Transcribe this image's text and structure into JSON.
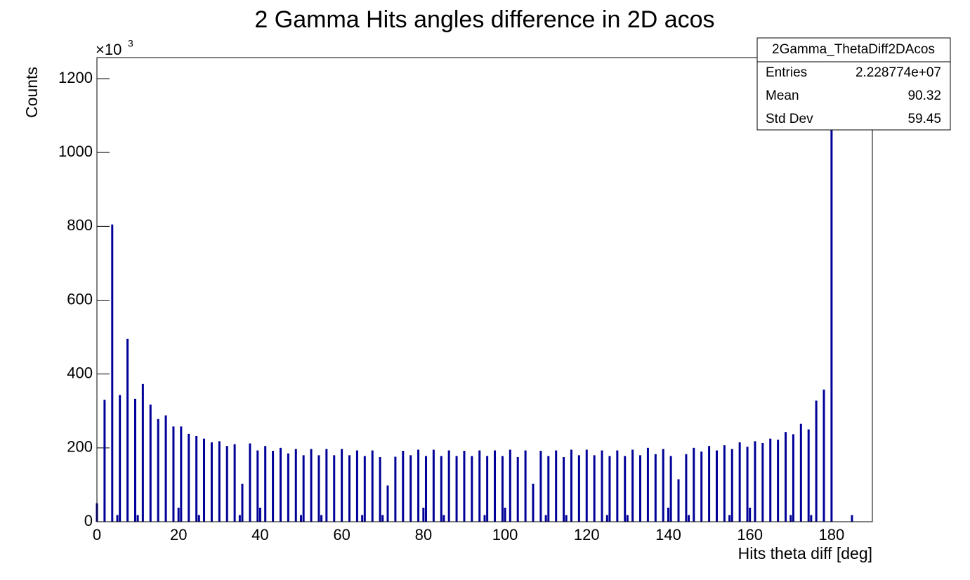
{
  "chart_data": {
    "type": "bar",
    "title": "2 Gamma Hits angles difference in 2D acos",
    "xlabel": "Hits theta diff [deg]",
    "ylabel": "Counts",
    "y_multiplier": "×10",
    "y_multiplier_exp": "3",
    "color": "#000099",
    "xlim": [
      0,
      190
    ],
    "ylim": [
      0,
      1257
    ],
    "xticks": [
      0,
      20,
      40,
      60,
      80,
      100,
      120,
      140,
      160,
      180
    ],
    "yticks": [
      0,
      200,
      400,
      600,
      800,
      1000,
      1200
    ],
    "x": [
      1.875,
      3.75,
      5.625,
      7.5,
      9.375,
      11.25,
      13.125,
      15,
      16.875,
      18.75,
      20.625,
      22.5,
      24.375,
      26.25,
      28.125,
      30,
      31.875,
      33.75,
      35.625,
      37.5,
      39.375,
      41.25,
      43.125,
      45,
      46.875,
      48.75,
      50.625,
      52.5,
      54.375,
      56.25,
      58.125,
      60,
      61.875,
      63.75,
      65.625,
      67.5,
      69.375,
      71.25,
      73.125,
      75,
      76.875,
      78.75,
      80.625,
      82.5,
      84.375,
      86.25,
      88.125,
      90,
      91.875,
      93.75,
      95.625,
      97.5,
      99.375,
      101.25,
      103.125,
      105,
      106.875,
      108.75,
      110.625,
      112.5,
      114.375,
      116.25,
      118.125,
      120,
      121.875,
      123.75,
      125.625,
      127.5,
      129.375,
      131.25,
      133.125,
      135,
      136.875,
      138.75,
      140.625,
      142.5,
      144.375,
      146.25,
      148.125,
      150,
      151.875,
      153.75,
      155.625,
      157.5,
      159.375,
      161.25,
      163.125,
      165,
      166.875,
      168.75,
      170.625,
      172.5,
      174.375,
      176.25,
      178.125,
      180,
      0,
      5,
      10,
      20,
      25,
      35,
      40,
      50,
      55,
      65,
      70,
      80,
      85,
      95,
      100,
      110,
      115,
      125,
      130,
      140,
      145,
      155,
      160,
      170,
      175,
      185
    ],
    "values": [
      330,
      805,
      343,
      495,
      333,
      373,
      317,
      278,
      288,
      258,
      258,
      238,
      232,
      225,
      215,
      218,
      205,
      210,
      103,
      212,
      193,
      205,
      192,
      200,
      185,
      197,
      180,
      197,
      180,
      197,
      180,
      197,
      180,
      193,
      178,
      193,
      175,
      98,
      176,
      192,
      180,
      195,
      178,
      195,
      178,
      193,
      178,
      192,
      178,
      193,
      178,
      193,
      178,
      195,
      175,
      193,
      103,
      192,
      178,
      193,
      175,
      195,
      180,
      195,
      180,
      193,
      178,
      193,
      178,
      195,
      180,
      200,
      183,
      197,
      178,
      115,
      183,
      200,
      190,
      205,
      193,
      207,
      197,
      215,
      203,
      218,
      213,
      225,
      222,
      243,
      237,
      265,
      250,
      328,
      358,
      1200,
      50,
      18,
      18,
      38,
      18,
      18,
      38,
      18,
      18,
      18,
      18,
      38,
      18,
      18,
      38,
      18,
      18,
      18,
      18,
      38,
      18,
      18,
      38,
      18,
      18,
      18
    ],
    "stats": {
      "title": "2Gamma_ThetaDiff2DAcos",
      "rows": [
        [
          "Entries",
          "2.228774e+07"
        ],
        [
          "Mean",
          "90.32"
        ],
        [
          "Std Dev",
          "59.45"
        ]
      ]
    }
  }
}
